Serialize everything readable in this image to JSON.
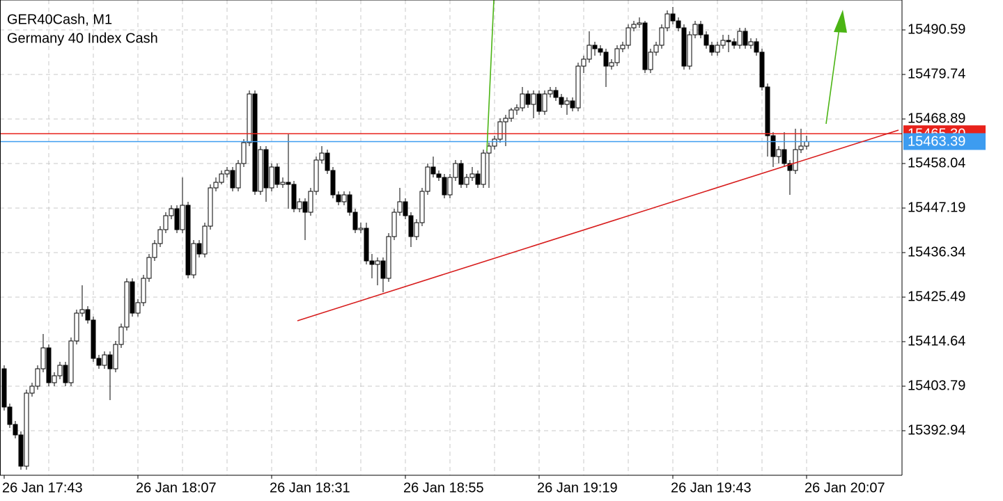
{
  "chart_data": {
    "type": "candlestick",
    "title": "GER40Cash, M1",
    "subtitle": "Germany 40 Index Cash",
    "x": [
      "26 Jan 17:43",
      "26 Jan 17:44",
      "26 Jan 17:45",
      "26 Jan 17:46",
      "26 Jan 17:47",
      "26 Jan 17:48",
      "26 Jan 17:49",
      "26 Jan 17:50",
      "26 Jan 17:51",
      "26 Jan 17:52",
      "26 Jan 17:53",
      "26 Jan 17:54",
      "26 Jan 17:55",
      "26 Jan 17:56",
      "26 Jan 17:57",
      "26 Jan 17:58",
      "26 Jan 17:59",
      "26 Jan 18:00",
      "26 Jan 18:01",
      "26 Jan 18:02",
      "26 Jan 18:03",
      "26 Jan 18:04",
      "26 Jan 18:05",
      "26 Jan 18:06",
      "26 Jan 18:07",
      "26 Jan 18:08",
      "26 Jan 18:09",
      "26 Jan 18:10",
      "26 Jan 18:11",
      "26 Jan 18:12",
      "26 Jan 18:13",
      "26 Jan 18:14",
      "26 Jan 18:15",
      "26 Jan 18:16",
      "26 Jan 18:17",
      "26 Jan 18:18",
      "26 Jan 18:19",
      "26 Jan 18:20",
      "26 Jan 18:21",
      "26 Jan 18:22",
      "26 Jan 18:23",
      "26 Jan 18:24",
      "26 Jan 18:25",
      "26 Jan 18:26",
      "26 Jan 18:27",
      "26 Jan 18:28",
      "26 Jan 18:29",
      "26 Jan 18:30",
      "26 Jan 18:31",
      "26 Jan 18:32",
      "26 Jan 18:33",
      "26 Jan 18:34",
      "26 Jan 18:35",
      "26 Jan 18:36",
      "26 Jan 18:37",
      "26 Jan 18:38",
      "26 Jan 18:39",
      "26 Jan 18:40",
      "26 Jan 18:41",
      "26 Jan 18:42",
      "26 Jan 18:43",
      "26 Jan 18:44",
      "26 Jan 18:45",
      "26 Jan 18:46",
      "26 Jan 18:47",
      "26 Jan 18:48",
      "26 Jan 18:49",
      "26 Jan 18:50",
      "26 Jan 18:51",
      "26 Jan 18:52",
      "26 Jan 18:53",
      "26 Jan 18:54",
      "26 Jan 18:55",
      "26 Jan 18:56",
      "26 Jan 18:57",
      "26 Jan 18:58",
      "26 Jan 18:59",
      "26 Jan 19:00",
      "26 Jan 19:01",
      "26 Jan 19:02",
      "26 Jan 19:03",
      "26 Jan 19:04",
      "26 Jan 19:05",
      "26 Jan 19:06",
      "26 Jan 19:07",
      "26 Jan 19:08",
      "26 Jan 19:09",
      "26 Jan 19:10",
      "26 Jan 19:11",
      "26 Jan 19:12",
      "26 Jan 19:13",
      "26 Jan 19:14",
      "26 Jan 19:15",
      "26 Jan 19:16",
      "26 Jan 19:17",
      "26 Jan 19:18",
      "26 Jan 19:19",
      "26 Jan 19:20",
      "26 Jan 19:21",
      "26 Jan 19:22",
      "26 Jan 19:23",
      "26 Jan 19:24",
      "26 Jan 19:25",
      "26 Jan 19:26",
      "26 Jan 19:27",
      "26 Jan 19:28",
      "26 Jan 19:29",
      "26 Jan 19:30",
      "26 Jan 19:31",
      "26 Jan 19:32",
      "26 Jan 19:33",
      "26 Jan 19:34",
      "26 Jan 19:35",
      "26 Jan 19:36",
      "26 Jan 19:37",
      "26 Jan 19:38",
      "26 Jan 19:39",
      "26 Jan 19:40",
      "26 Jan 19:41",
      "26 Jan 19:42",
      "26 Jan 19:43",
      "26 Jan 19:44",
      "26 Jan 19:45",
      "26 Jan 19:46",
      "26 Jan 19:47",
      "26 Jan 19:48",
      "26 Jan 19:49",
      "26 Jan 19:50",
      "26 Jan 19:51",
      "26 Jan 19:52",
      "26 Jan 19:53",
      "26 Jan 19:54",
      "26 Jan 19:55",
      "26 Jan 19:56",
      "26 Jan 19:57",
      "26 Jan 19:58",
      "26 Jan 19:59",
      "26 Jan 20:00",
      "26 Jan 20:01",
      "26 Jan 20:02",
      "26 Jan 20:03",
      "26 Jan 20:04",
      "26 Jan 20:05",
      "26 Jan 20:06",
      "26 Jan 20:07"
    ],
    "open": [
      15408.03,
      15398.71,
      15394.47,
      15391.92,
      15384.3,
      15402.1,
      15403.79,
      15408.03,
      15413.12,
      15404.64,
      15406.33,
      15408.88,
      15404.64,
      15414.81,
      15421.59,
      15422.44,
      15419.9,
      15410.57,
      15408.88,
      15411.42,
      15408.03,
      15413.96,
      15418.2,
      15429.22,
      15421.59,
      15424.14,
      15430.07,
      15435.15,
      15438.54,
      15441.93,
      15445.33,
      15447.02,
      15441.93,
      15447.87,
      15430.91,
      15438.54,
      15436.0,
      15442.78,
      15452.11,
      15453.46,
      15455.5,
      15456.35,
      15452.11,
      15458.04,
      15463.13,
      15474.99,
      15451.26,
      15461.43,
      15452.11,
      15457.19,
      15452.96,
      15453.46,
      15452.96,
      15447.02,
      15448.72,
      15446.17,
      15451.26,
      15458.89,
      15460.58,
      15456.35,
      15450.41,
      15448.72,
      15450.41,
      15446.17,
      15441.93,
      15442.27,
      15434.31,
      15433.46,
      15434.31,
      15430.07,
      15440.24,
      15446.17,
      15448.72,
      15445.33,
      15440.24,
      15443.63,
      15451.26,
      15457.19,
      15455.5,
      15454.65,
      15450.41,
      15454.65,
      15458.04,
      15452.96,
      15454.65,
      15455.5,
      15452.96,
      15460.58,
      15462.28,
      15463.97,
      15468.21,
      15469.06,
      15471.09,
      15471.6,
      15474.99,
      15472.45,
      15474.99,
      15470.76,
      15474.99,
      15475.84,
      15474.15,
      15472.45,
      15473.3,
      15471.6,
      15481.77,
      15483.47,
      15486.86,
      15486.01,
      15485.17,
      15481.77,
      15482.62,
      15486.01,
      15486.86,
      15491.1,
      15491.95,
      15492.29,
      15480.93,
      15485.17,
      15486.86,
      15491.1,
      15494.49,
      15492.79,
      15491.1,
      15481.77,
      15489.4,
      15491.95,
      15489.4,
      15486.86,
      15485.17,
      15486.86,
      15488.05,
      15487.71,
      15486.86,
      15490.25,
      15486.86,
      15487.71,
      15485.17,
      15476.69,
      15464.82,
      15459.74,
      15461.43,
      15458.04,
      15456.35,
      15461.43,
      15462.28
    ],
    "high": [
      15408.88,
      15399.55,
      15395.31,
      15392.77,
      15402.94,
      15404.64,
      15408.88,
      15416.51,
      15413.96,
      15407.18,
      15409.72,
      15409.72,
      15415.66,
      15422.44,
      15428.37,
      15423.29,
      15420.75,
      15411.42,
      15412.27,
      15412.27,
      15414.81,
      15419.05,
      15430.07,
      15430.07,
      15424.98,
      15430.91,
      15436.0,
      15439.39,
      15442.78,
      15446.17,
      15447.87,
      15447.87,
      15454.65,
      15448.72,
      15439.39,
      15439.39,
      15443.63,
      15452.96,
      15454.65,
      15456.35,
      15457.19,
      15457.19,
      15458.89,
      15463.97,
      15475.84,
      15475.84,
      15462.28,
      15462.28,
      15458.04,
      15458.04,
      15454.65,
      15465.16,
      15453.8,
      15449.56,
      15449.56,
      15452.11,
      15459.74,
      15462.28,
      15461.43,
      15457.19,
      15451.26,
      15451.26,
      15451.26,
      15447.02,
      15443.63,
      15443.63,
      15436.0,
      15435.15,
      15435.15,
      15441.09,
      15447.02,
      15452.11,
      15449.56,
      15446.17,
      15444.48,
      15452.11,
      15458.04,
      15459.74,
      15456.35,
      15455.5,
      15455.5,
      15458.89,
      15458.89,
      15455.5,
      15457.19,
      15456.35,
      15461.43,
      15463.13,
      15464.82,
      15469.06,
      15469.91,
      15471.6,
      15472.45,
      15476.69,
      15475.84,
      15475.84,
      15475.84,
      15475.84,
      15476.69,
      15476.69,
      15474.99,
      15474.15,
      15474.15,
      15482.62,
      15484.32,
      15490.25,
      15487.71,
      15486.86,
      15486.01,
      15483.47,
      15486.86,
      15487.71,
      15491.95,
      15492.79,
      15493.64,
      15492.79,
      15486.01,
      15487.71,
      15491.95,
      15495.34,
      15496.18,
      15493.64,
      15491.95,
      15490.25,
      15492.79,
      15492.79,
      15490.25,
      15487.71,
      15487.71,
      15489.4,
      15489.4,
      15488.56,
      15491.1,
      15491.1,
      15488.56,
      15488.56,
      15486.01,
      15477.54,
      15465.67,
      15462.28,
      15465.67,
      15458.89,
      15466.52,
      15466.52,
      15464.82
    ],
    "low": [
      15397.86,
      15393.62,
      15391.08,
      15383.45,
      15383.45,
      15401.25,
      15402.94,
      15407.18,
      15403.79,
      15403.79,
      15405.49,
      15403.79,
      15403.79,
      15413.96,
      15420.75,
      15419.05,
      15409.72,
      15408.03,
      15408.03,
      15400.4,
      15407.18,
      15413.12,
      15417.35,
      15420.75,
      15420.75,
      15423.29,
      15429.22,
      15434.31,
      15437.7,
      15441.09,
      15444.48,
      15441.09,
      15441.09,
      15430.07,
      15430.07,
      15435.15,
      15435.15,
      15441.93,
      15451.26,
      15452.96,
      15454.65,
      15451.26,
      15451.26,
      15457.19,
      15462.28,
      15450.41,
      15450.41,
      15448.72,
      15451.26,
      15452.11,
      15452.11,
      15447.02,
      15446.17,
      15446.17,
      15439.39,
      15445.33,
      15450.41,
      15458.04,
      15455.5,
      15449.56,
      15447.87,
      15447.87,
      15445.33,
      15441.09,
      15441.09,
      15433.46,
      15430.07,
      15428.37,
      15426.68,
      15429.22,
      15439.39,
      15445.33,
      15444.48,
      15437.7,
      15439.39,
      15442.78,
      15450.41,
      15454.65,
      15453.8,
      15449.56,
      15449.56,
      15453.8,
      15452.11,
      15452.11,
      15453.8,
      15452.11,
      15452.11,
      15452.11,
      15461.43,
      15463.13,
      15462.28,
      15468.21,
      15469.91,
      15470.76,
      15471.6,
      15469.06,
      15469.91,
      15469.91,
      15474.15,
      15473.3,
      15471.6,
      15469.91,
      15470.76,
      15470.76,
      15480.08,
      15482.62,
      15484.32,
      15484.32,
      15476.69,
      15480.93,
      15481.77,
      15485.17,
      15486.01,
      15490.25,
      15491.1,
      15480.08,
      15480.08,
      15484.32,
      15486.01,
      15490.25,
      15491.95,
      15490.25,
      15480.93,
      15480.93,
      15488.56,
      15488.56,
      15486.01,
      15484.32,
      15484.32,
      15486.01,
      15485.17,
      15486.01,
      15486.01,
      15486.01,
      15486.01,
      15484.32,
      15475.84,
      15459.74,
      15457.19,
      15458.04,
      15457.19,
      15450.41,
      15455.5,
      15460.58,
      15461.43
    ],
    "close": [
      15398.71,
      15394.47,
      15391.92,
      15384.3,
      15402.1,
      15403.79,
      15408.03,
      15413.12,
      15404.64,
      15406.33,
      15408.88,
      15404.64,
      15414.81,
      15421.59,
      15422.44,
      15419.9,
      15410.57,
      15408.88,
      15411.42,
      15408.03,
      15413.96,
      15418.2,
      15429.22,
      15421.59,
      15424.14,
      15430.07,
      15435.15,
      15438.54,
      15441.93,
      15445.33,
      15447.02,
      15441.93,
      15447.87,
      15430.91,
      15438.54,
      15436.0,
      15442.78,
      15452.11,
      15453.46,
      15455.5,
      15456.35,
      15452.11,
      15458.04,
      15463.13,
      15474.99,
      15451.26,
      15461.43,
      15452.11,
      15457.19,
      15452.96,
      15453.46,
      15452.96,
      15447.02,
      15448.72,
      15446.17,
      15451.26,
      15458.89,
      15460.58,
      15456.35,
      15450.41,
      15448.72,
      15450.41,
      15446.17,
      15441.93,
      15442.27,
      15434.31,
      15433.46,
      15434.31,
      15430.07,
      15440.24,
      15446.17,
      15448.72,
      15445.33,
      15440.24,
      15443.63,
      15451.26,
      15457.19,
      15455.5,
      15454.65,
      15450.41,
      15454.65,
      15458.04,
      15452.96,
      15454.65,
      15455.5,
      15452.96,
      15460.58,
      15462.28,
      15463.97,
      15468.21,
      15469.06,
      15471.09,
      15471.6,
      15474.99,
      15472.45,
      15474.99,
      15470.76,
      15474.99,
      15475.84,
      15474.15,
      15472.45,
      15473.3,
      15471.6,
      15481.77,
      15483.47,
      15486.86,
      15486.01,
      15485.17,
      15481.77,
      15482.62,
      15486.01,
      15486.86,
      15491.1,
      15491.95,
      15492.29,
      15480.93,
      15485.17,
      15486.86,
      15491.1,
      15494.49,
      15492.79,
      15491.1,
      15481.77,
      15489.4,
      15491.95,
      15489.4,
      15486.86,
      15485.17,
      15486.86,
      15488.05,
      15487.71,
      15486.86,
      15490.25,
      15486.86,
      15487.71,
      15485.17,
      15476.69,
      15464.82,
      15459.74,
      15461.43,
      15458.04,
      15456.35,
      15461.43,
      15462.28,
      15463.39
    ],
    "up_color": "#ffffff",
    "down_color": "#000000",
    "edge_color": "#000000",
    "ylim": [
      15382.09,
      15497.88
    ],
    "yticks": [
      15392.94,
      15403.79,
      15414.64,
      15425.49,
      15436.34,
      15447.19,
      15458.04,
      15468.89,
      15479.74,
      15490.59
    ],
    "xticks": [
      "26 Jan 17:43",
      "26 Jan 18:07",
      "26 Jan 18:31",
      "26 Jan 18:55",
      "26 Jan 19:19",
      "26 Jan 19:43",
      "26 Jan 20:07"
    ],
    "grid": true,
    "grid_every": 8,
    "price_lines": [
      {
        "price": {
          "value": 15465.3,
          "label": "15465.30"
        },
        "color": "#e8221b"
      },
      {
        "price": 15463.39,
        "color": "#3d9cf0"
      }
    ]
  }
}
